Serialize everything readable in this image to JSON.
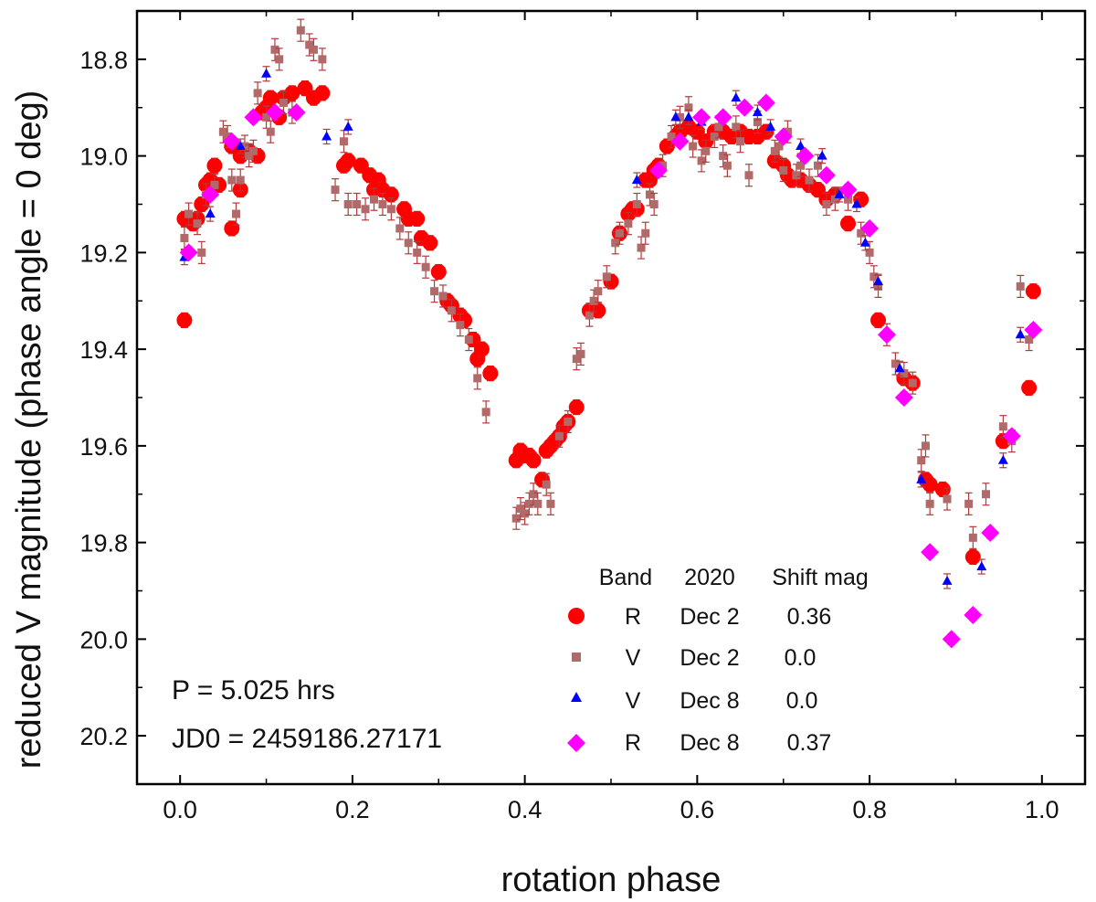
{
  "chart_data": {
    "type": "scatter",
    "title": "",
    "xlabel": "rotation phase",
    "ylabel": "reduced V magnitude (phase angle  = 0 deg)",
    "xlim": [
      -0.05,
      1.05
    ],
    "ylim": [
      20.3,
      18.7
    ],
    "y_inverted": true,
    "grid": false,
    "x_ticks": [
      0.0,
      0.2,
      0.4,
      0.6,
      0.8,
      1.0
    ],
    "x_tick_labels": [
      "0.0",
      "0.2",
      "0.4",
      "0.6",
      "0.8",
      "1.0"
    ],
    "y_ticks": [
      18.8,
      19.0,
      19.2,
      19.4,
      19.6,
      19.8,
      20.0,
      20.2
    ],
    "y_tick_labels": [
      "18.8",
      "19.0",
      "19.2",
      "19.4",
      "19.6",
      "19.8",
      "20.0",
      "20.2"
    ],
    "annotations": [
      "P = 5.025 hrs",
      "JD0 = 2459186.27171"
    ],
    "legend": {
      "placement": "bottom-right",
      "header": [
        "Band",
        "2020",
        "Shift mag"
      ],
      "entries": [
        {
          "band": "R",
          "date": "Dec 2",
          "shift": "0.36"
        },
        {
          "band": "V",
          "date": "Dec 2",
          "shift": "0.0"
        },
        {
          "band": "V",
          "date": "Dec 8",
          "shift": "0.0"
        },
        {
          "band": "R",
          "date": "Dec 8",
          "shift": "0.37"
        }
      ]
    },
    "series": [
      {
        "name": "R Dec 2 (shift 0.36)",
        "marker": "circle",
        "color": "#ff0000",
        "points": [
          [
            0.005,
            19.34
          ],
          [
            0.005,
            19.13
          ],
          [
            0.015,
            19.14
          ],
          [
            0.02,
            19.13
          ],
          [
            0.025,
            19.1
          ],
          [
            0.03,
            19.06
          ],
          [
            0.035,
            19.05
          ],
          [
            0.04,
            19.02
          ],
          [
            0.045,
            19.06
          ],
          [
            0.06,
            19.15
          ],
          [
            0.06,
            18.98
          ],
          [
            0.07,
            19.07
          ],
          [
            0.07,
            19.0
          ],
          [
            0.08,
            18.99
          ],
          [
            0.09,
            19.0
          ],
          [
            0.095,
            18.91
          ],
          [
            0.1,
            18.9
          ],
          [
            0.105,
            18.88
          ],
          [
            0.115,
            18.92
          ],
          [
            0.12,
            18.88
          ],
          [
            0.13,
            18.87
          ],
          [
            0.145,
            18.86
          ],
          [
            0.155,
            18.88
          ],
          [
            0.165,
            18.87
          ],
          [
            0.19,
            19.02
          ],
          [
            0.195,
            19.01
          ],
          [
            0.21,
            19.02
          ],
          [
            0.22,
            19.04
          ],
          [
            0.225,
            19.07
          ],
          [
            0.23,
            19.05
          ],
          [
            0.235,
            19.07
          ],
          [
            0.245,
            19.08
          ],
          [
            0.26,
            19.11
          ],
          [
            0.265,
            19.13
          ],
          [
            0.275,
            19.13
          ],
          [
            0.28,
            19.17
          ],
          [
            0.29,
            19.18
          ],
          [
            0.3,
            19.24
          ],
          [
            0.31,
            19.3
          ],
          [
            0.315,
            19.31
          ],
          [
            0.325,
            19.33
          ],
          [
            0.33,
            19.34
          ],
          [
            0.34,
            19.38
          ],
          [
            0.345,
            19.42
          ],
          [
            0.35,
            19.4
          ],
          [
            0.36,
            19.45
          ],
          [
            0.39,
            19.63
          ],
          [
            0.395,
            19.61
          ],
          [
            0.4,
            19.62
          ],
          [
            0.405,
            19.62
          ],
          [
            0.41,
            19.63
          ],
          [
            0.42,
            19.67
          ],
          [
            0.425,
            19.61
          ],
          [
            0.43,
            19.6
          ],
          [
            0.435,
            19.59
          ],
          [
            0.44,
            19.58
          ],
          [
            0.445,
            19.56
          ],
          [
            0.45,
            19.55
          ],
          [
            0.46,
            19.52
          ],
          [
            0.475,
            19.32
          ],
          [
            0.485,
            19.32
          ],
          [
            0.5,
            19.26
          ],
          [
            0.51,
            19.16
          ],
          [
            0.52,
            19.12
          ],
          [
            0.525,
            19.11
          ],
          [
            0.53,
            19.11
          ],
          [
            0.54,
            19.05
          ],
          [
            0.545,
            19.05
          ],
          [
            0.55,
            19.03
          ],
          [
            0.555,
            19.02
          ],
          [
            0.565,
            18.98
          ],
          [
            0.575,
            18.96
          ],
          [
            0.58,
            18.95
          ],
          [
            0.59,
            18.94
          ],
          [
            0.6,
            18.95
          ],
          [
            0.61,
            18.97
          ],
          [
            0.62,
            18.95
          ],
          [
            0.63,
            18.95
          ],
          [
            0.64,
            18.96
          ],
          [
            0.65,
            18.95
          ],
          [
            0.66,
            18.96
          ],
          [
            0.67,
            18.96
          ],
          [
            0.68,
            18.95
          ],
          [
            0.69,
            19.01
          ],
          [
            0.7,
            19.02
          ],
          [
            0.705,
            19.04
          ],
          [
            0.71,
            19.05
          ],
          [
            0.72,
            19.05
          ],
          [
            0.73,
            19.06
          ],
          [
            0.74,
            19.07
          ],
          [
            0.75,
            19.09
          ],
          [
            0.76,
            19.08
          ],
          [
            0.775,
            19.14
          ],
          [
            0.79,
            19.09
          ],
          [
            0.81,
            19.34
          ],
          [
            0.84,
            19.46
          ],
          [
            0.85,
            19.47
          ],
          [
            0.865,
            19.67
          ],
          [
            0.87,
            19.68
          ],
          [
            0.885,
            19.69
          ],
          [
            0.92,
            19.83
          ],
          [
            0.955,
            19.59
          ],
          [
            0.985,
            19.48
          ],
          [
            0.99,
            19.28
          ]
        ]
      },
      {
        "name": "V Dec 2 (shift 0.0)",
        "marker": "square",
        "color": "#b06a6a",
        "points": [
          [
            0.005,
            19.17
          ],
          [
            0.01,
            19.12
          ],
          [
            0.02,
            19.14
          ],
          [
            0.025,
            19.2
          ],
          [
            0.03,
            19.08
          ],
          [
            0.04,
            19.06
          ],
          [
            0.05,
            18.95
          ],
          [
            0.055,
            18.96
          ],
          [
            0.06,
            19.05
          ],
          [
            0.065,
            19.12
          ],
          [
            0.07,
            19.05
          ],
          [
            0.075,
            18.98
          ],
          [
            0.08,
            19.0
          ],
          [
            0.085,
            18.99
          ],
          [
            0.09,
            18.87
          ],
          [
            0.1,
            18.92
          ],
          [
            0.105,
            18.95
          ],
          [
            0.11,
            18.78
          ],
          [
            0.115,
            18.8
          ],
          [
            0.12,
            18.89
          ],
          [
            0.13,
            18.91
          ],
          [
            0.14,
            18.74
          ],
          [
            0.15,
            18.77
          ],
          [
            0.155,
            18.78
          ],
          [
            0.165,
            18.8
          ],
          [
            0.18,
            19.07
          ],
          [
            0.19,
            18.97
          ],
          [
            0.195,
            19.1
          ],
          [
            0.205,
            19.1
          ],
          [
            0.215,
            19.11
          ],
          [
            0.225,
            19.09
          ],
          [
            0.235,
            19.1
          ],
          [
            0.245,
            19.11
          ],
          [
            0.255,
            19.15
          ],
          [
            0.265,
            19.18
          ],
          [
            0.275,
            19.2
          ],
          [
            0.285,
            19.23
          ],
          [
            0.295,
            19.28
          ],
          [
            0.305,
            19.29
          ],
          [
            0.315,
            19.32
          ],
          [
            0.325,
            19.35
          ],
          [
            0.335,
            19.38
          ],
          [
            0.345,
            19.46
          ],
          [
            0.355,
            19.53
          ],
          [
            0.39,
            19.75
          ],
          [
            0.395,
            19.73
          ],
          [
            0.4,
            19.74
          ],
          [
            0.405,
            19.72
          ],
          [
            0.41,
            19.7
          ],
          [
            0.415,
            19.72
          ],
          [
            0.425,
            19.68
          ],
          [
            0.43,
            19.72
          ],
          [
            0.44,
            19.58
          ],
          [
            0.45,
            19.55
          ],
          [
            0.46,
            19.42
          ],
          [
            0.465,
            19.41
          ],
          [
            0.475,
            19.33
          ],
          [
            0.48,
            19.3
          ],
          [
            0.485,
            19.28
          ],
          [
            0.495,
            19.25
          ],
          [
            0.505,
            19.18
          ],
          [
            0.51,
            19.16
          ],
          [
            0.52,
            19.14
          ],
          [
            0.53,
            19.1
          ],
          [
            0.535,
            19.19
          ],
          [
            0.54,
            19.16
          ],
          [
            0.545,
            19.08
          ],
          [
            0.55,
            19.1
          ],
          [
            0.56,
            19.02
          ],
          [
            0.57,
            18.96
          ],
          [
            0.58,
            18.92
          ],
          [
            0.59,
            18.9
          ],
          [
            0.595,
            18.98
          ],
          [
            0.605,
            19.01
          ],
          [
            0.61,
            18.99
          ],
          [
            0.62,
            18.96
          ],
          [
            0.625,
            18.94
          ],
          [
            0.63,
            19.0
          ],
          [
            0.635,
            19.02
          ],
          [
            0.645,
            18.94
          ],
          [
            0.65,
            18.97
          ],
          [
            0.66,
            19.04
          ],
          [
            0.67,
            18.93
          ],
          [
            0.69,
            18.99
          ],
          [
            0.695,
            18.98
          ],
          [
            0.7,
            19.03
          ],
          [
            0.705,
            18.95
          ],
          [
            0.715,
            19.04
          ],
          [
            0.72,
            19.02
          ],
          [
            0.73,
            19.05
          ],
          [
            0.74,
            19.02
          ],
          [
            0.75,
            19.1
          ],
          [
            0.76,
            19.09
          ],
          [
            0.775,
            19.09
          ],
          [
            0.79,
            19.16
          ],
          [
            0.8,
            19.2
          ],
          [
            0.805,
            19.25
          ],
          [
            0.81,
            19.27
          ],
          [
            0.82,
            19.37
          ],
          [
            0.83,
            19.43
          ],
          [
            0.84,
            19.45
          ],
          [
            0.85,
            19.47
          ],
          [
            0.86,
            19.63
          ],
          [
            0.865,
            19.6
          ],
          [
            0.87,
            19.72
          ],
          [
            0.89,
            19.71
          ],
          [
            0.915,
            19.72
          ],
          [
            0.92,
            19.79
          ],
          [
            0.935,
            19.7
          ],
          [
            0.955,
            19.56
          ],
          [
            0.965,
            19.59
          ],
          [
            0.975,
            19.27
          ],
          [
            0.985,
            19.38
          ]
        ]
      },
      {
        "name": "V Dec 8 (shift 0.0)",
        "marker": "triangle",
        "color": "#0000ff",
        "points": [
          [
            0.005,
            19.21
          ],
          [
            0.035,
            19.12
          ],
          [
            0.07,
            18.98
          ],
          [
            0.1,
            18.83
          ],
          [
            0.17,
            18.96
          ],
          [
            0.195,
            18.94
          ],
          [
            0.53,
            19.05
          ],
          [
            0.575,
            18.92
          ],
          [
            0.59,
            18.92
          ],
          [
            0.605,
            18.93
          ],
          [
            0.645,
            18.88
          ],
          [
            0.67,
            18.91
          ],
          [
            0.685,
            18.94
          ],
          [
            0.72,
            18.98
          ],
          [
            0.745,
            19.0
          ],
          [
            0.765,
            19.08
          ],
          [
            0.785,
            19.1
          ],
          [
            0.795,
            19.18
          ],
          [
            0.81,
            19.26
          ],
          [
            0.835,
            19.44
          ],
          [
            0.86,
            19.67
          ],
          [
            0.89,
            19.88
          ],
          [
            0.93,
            19.85
          ],
          [
            0.955,
            19.63
          ],
          [
            0.975,
            19.37
          ]
        ]
      },
      {
        "name": "R Dec 8 (shift 0.37)",
        "marker": "diamond",
        "color": "#ff00ff",
        "points": [
          [
            0.01,
            19.2
          ],
          [
            0.035,
            19.08
          ],
          [
            0.06,
            18.97
          ],
          [
            0.085,
            18.92
          ],
          [
            0.11,
            18.91
          ],
          [
            0.135,
            18.91
          ],
          [
            0.555,
            19.03
          ],
          [
            0.58,
            18.97
          ],
          [
            0.605,
            18.92
          ],
          [
            0.63,
            18.92
          ],
          [
            0.655,
            18.9
          ],
          [
            0.68,
            18.89
          ],
          [
            0.7,
            18.96
          ],
          [
            0.725,
            19.0
          ],
          [
            0.75,
            19.04
          ],
          [
            0.775,
            19.07
          ],
          [
            0.8,
            19.15
          ],
          [
            0.82,
            19.37
          ],
          [
            0.84,
            19.5
          ],
          [
            0.87,
            19.82
          ],
          [
            0.895,
            20.0
          ],
          [
            0.92,
            19.95
          ],
          [
            0.94,
            19.78
          ],
          [
            0.965,
            19.58
          ],
          [
            0.99,
            19.36
          ]
        ]
      }
    ]
  }
}
